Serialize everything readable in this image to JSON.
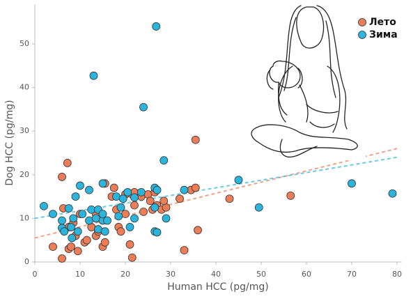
{
  "chart_data": {
    "type": "scatter",
    "x_label": "Human HCC (pg/mg)",
    "y_label": "Dog HCC (pg/mg)",
    "xlim": [
      0,
      81
    ],
    "ylim": [
      0,
      59
    ],
    "xticks": [
      0,
      10,
      20,
      30,
      40,
      50,
      60,
      70,
      80
    ],
    "yticks": [
      0,
      10,
      20,
      30,
      40,
      50
    ],
    "grid": false,
    "legend": "upper right",
    "trend_x": [
      0,
      80
    ],
    "series": [
      {
        "name": "Лето",
        "color": "#ec7d56",
        "x": [
          6.0,
          7.2,
          35.5,
          6.3,
          4,
          6,
          7.5,
          8,
          9,
          9.5,
          11,
          11.5,
          13.5,
          14,
          15,
          15.5,
          13.5,
          15.5,
          17,
          17.5,
          18.5,
          19,
          20,
          21,
          21.5,
          21.5,
          22,
          23.5,
          24,
          25,
          25.5,
          26,
          27,
          28,
          26.5,
          29,
          32,
          33,
          34.5,
          35.5,
          36,
          43,
          56.5,
          7.5,
          8.5,
          10,
          12.5,
          18,
          20,
          22,
          28.5
        ],
        "values": [
          19.5,
          22.7,
          28.0,
          12.3,
          3.5,
          0.8,
          3,
          3.5,
          6,
          2.5,
          4.5,
          5,
          6,
          7,
          3.5,
          4.5,
          11,
          18,
          15,
          17,
          8,
          7,
          15.5,
          4,
          1,
          15.5,
          13,
          15,
          11.5,
          15.5,
          14,
          12,
          13,
          12,
          16,
          12.5,
          14.5,
          2.7,
          16.5,
          17,
          7.3,
          14.5,
          15.2,
          8,
          9,
          11,
          8,
          12,
          11,
          16,
          14
        ],
        "trend": [
          5.5,
          26
        ]
      },
      {
        "name": "Зима",
        "color": "#2bb5dc",
        "x": [
          26.8,
          13,
          24,
          28.5,
          2,
          4,
          6,
          6,
          6.5,
          7.5,
          8,
          8.2,
          8.5,
          9,
          9.5,
          10,
          10.5,
          12,
          12,
          12.5,
          13.5,
          14,
          14,
          15,
          15,
          15.5,
          16,
          18,
          18.5,
          19,
          19.5,
          21,
          22,
          22,
          23.5,
          26.5,
          26.5,
          27,
          26.5,
          27,
          29,
          33,
          45,
          49.5,
          70,
          79,
          20.5,
          15
        ],
        "values": [
          54,
          42.7,
          35.5,
          23.3,
          12.8,
          11,
          7.8,
          9.5,
          7,
          12.3,
          8,
          5.5,
          10,
          15,
          7,
          17.5,
          11,
          16.5,
          9.5,
          12,
          10,
          12,
          7.5,
          9.5,
          18,
          7,
          9.5,
          15,
          10.5,
          12.5,
          14.5,
          8,
          14.8,
          10,
          16,
          12.5,
          7,
          6.8,
          17,
          16.5,
          10,
          16.5,
          18.8,
          12.5,
          18,
          15.7,
          16,
          11
        ],
        "trend": [
          10,
          24
        ]
      }
    ]
  }
}
